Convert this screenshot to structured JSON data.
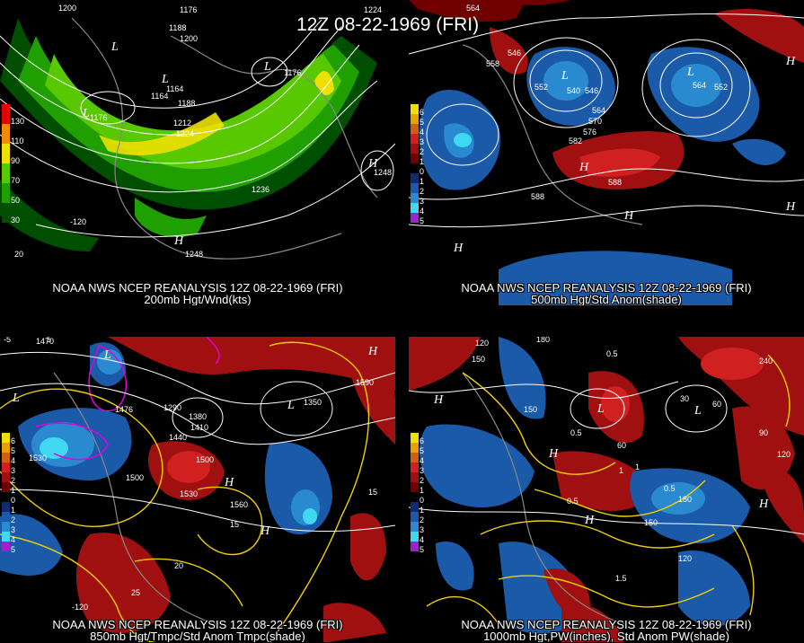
{
  "title": "12Z 08-22-1969 (FRI)",
  "panels": {
    "p200": {
      "caption1": "NOAA NWS NCEP REANALYSIS 12Z 08-22-1969 (FRI)",
      "caption2": "200mb Hgt/Wnd(kts)",
      "legend": [
        "130",
        "110",
        "90",
        "70",
        "50",
        "30"
      ],
      "labels": [
        "1200",
        "1176",
        "1188",
        "1200",
        "1164",
        "1176",
        "1176",
        "1164",
        "1188",
        "1212",
        "1224",
        "1248",
        "1236",
        "1248",
        "1224",
        "-120",
        "20"
      ],
      "highs_lows": [
        "L",
        "L",
        "L",
        "L",
        "H",
        "H"
      ]
    },
    "p500": {
      "caption1": "NOAA NWS NCEP REANALYSIS 12Z 08-22-1969 (FRI)",
      "caption2": "500mb Hgt/Std Anom(shade)",
      "legend": [
        "6",
        "5",
        "4",
        "3",
        "2",
        "1",
        "0",
        "1",
        "2",
        "3",
        "4",
        "5"
      ],
      "labels": [
        "564",
        "546",
        "558",
        "552",
        "540",
        "546",
        "564",
        "570",
        "576",
        "582",
        "588",
        "588",
        "564",
        "552"
      ],
      "highs_lows": [
        "L",
        "L",
        "H",
        "H",
        "H",
        "H",
        "H"
      ]
    },
    "p850": {
      "caption1": "NOAA NWS NCEP REANALYSIS 12Z 08-22-1969 (FRI)",
      "caption2": "850mb Hgt/Tmpc/Std Anom Tmpc(shade)",
      "legend": [
        "6",
        "5",
        "4",
        "3",
        "2",
        "1",
        "0",
        "1",
        "2",
        "3",
        "4",
        "5"
      ],
      "labels": [
        "1470",
        "1476",
        "1440",
        "1500",
        "1530",
        "1500",
        "1560",
        "1530",
        "1590",
        "1380",
        "1350",
        "1290",
        "1410",
        "5",
        "15",
        "20",
        "25",
        "-5",
        "15",
        "-120"
      ],
      "highs_lows": [
        "L",
        "L",
        "L",
        "H",
        "H",
        "H"
      ]
    },
    "p1000": {
      "caption1": "NOAA NWS NCEP REANALYSIS 12Z 08-22-1969 (FRI)",
      "caption2": "1000mb Hgt,PW(inches), Std Anom PW(shade)",
      "legend": [
        "6",
        "5",
        "4",
        "3",
        "2",
        "1",
        "0",
        "1",
        "2",
        "3",
        "4",
        "5"
      ],
      "labels": [
        "120",
        "150",
        "180",
        "150",
        "60",
        "0.5",
        "0.5",
        "1",
        "1.5",
        "180",
        "150",
        "120",
        "0.5",
        "120",
        "90",
        "1",
        "240",
        "0.5",
        "30",
        "60"
      ],
      "highs_lows": [
        "L",
        "L",
        "H",
        "H",
        "H",
        "H"
      ]
    }
  },
  "colors": {
    "wind_scale": [
      "#e80000",
      "#f08c00",
      "#f0e000",
      "#58c800",
      "#20a000",
      "#004e00"
    ],
    "anom_scale": [
      "#f0e000",
      "#e8a000",
      "#d06010",
      "#d02020",
      "#a01010",
      "#700000",
      "#000000",
      "#0e2a72",
      "#1a5aa8",
      "#2a8ad0",
      "#40d8f0",
      "#a020d0"
    ],
    "contour": "#ffffff",
    "temp_contour": "#f0d000",
    "cold_contour": "#e000e0"
  }
}
